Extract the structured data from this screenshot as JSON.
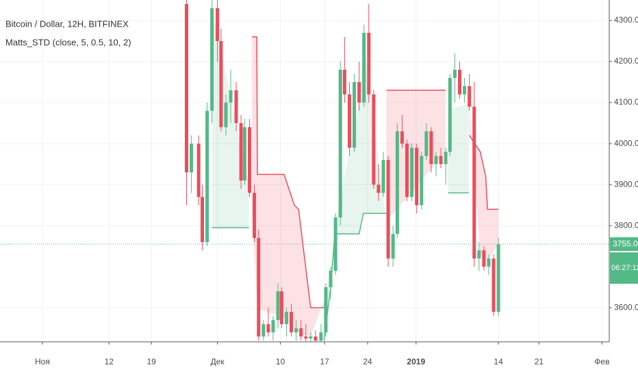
{
  "chart_data": {
    "type": "candlestick",
    "title": "Bitcoin / Dollar, 12H, BITFINEX",
    "subtitle": "Matts_STD (close, 5, 0.5, 10, 2)",
    "colors": {
      "up": "#53b987",
      "down": "#eb4d5c"
    },
    "candles": {
      "x": [
        23.8,
        24.6,
        25.8,
        26.4,
        27.2,
        28.0,
        28.9,
        29.5,
        30.3,
        31.1,
        32.0,
        32.8,
        33.4,
        34.2,
        35.0,
        35.7,
        36.5,
        37.3,
        38.1,
        38.9,
        39.5,
        40.3,
        41.1,
        41.9,
        42.7,
        43.5,
        44.3,
        45.1,
        46.0,
        46.8,
        47.6,
        48.4,
        49.2,
        49.9,
        50.7,
        51.5,
        52.3,
        53.1,
        53.9,
        54.7,
        55.5,
        56.3,
        57.1,
        57.9,
        58.6,
        59.4,
        60.2,
        61.0,
        61.8,
        62.6,
        63.4,
        64.2,
        65.0,
        65.8,
        66.6,
        67.3,
        68.1,
        68.9,
        69.7,
        70.5,
        71.3,
        72.1,
        72.9,
        73.7,
        74.5,
        75.3
      ],
      "open": [
        4340,
        3930,
        4000,
        3870,
        3760,
        4080,
        4330,
        4250,
        4040,
        4100,
        4130,
        4050,
        3910,
        4040,
        3880,
        3770,
        3530,
        3560,
        3540,
        3570,
        3640,
        3560,
        3590,
        3540,
        3550,
        3530,
        3525,
        3530,
        3520,
        3540,
        3650,
        3690,
        3820,
        4180,
        4120,
        3990,
        4150,
        4100,
        4270,
        4120,
        3900,
        3880,
        3960,
        3720,
        3780,
        4030,
        4000,
        3870,
        3990,
        3850,
        3970,
        4030,
        3950,
        3970,
        3950,
        3980,
        4160,
        4180,
        4120,
        4140,
        4090,
        3720,
        3740,
        3700,
        3720,
        3590
      ],
      "high": [
        4350,
        4020,
        4020,
        3900,
        4100,
        4350,
        4350,
        4280,
        4120,
        4180,
        4150,
        4070,
        4060,
        4060,
        3900,
        3790,
        3570,
        3600,
        3580,
        3660,
        3650,
        3600,
        3610,
        3570,
        3570,
        3560,
        3540,
        3545,
        3560,
        3660,
        3700,
        3830,
        4200,
        4260,
        4150,
        4170,
        4200,
        4290,
        4340,
        4130,
        3950,
        3980,
        3970,
        3800,
        4050,
        4070,
        4010,
        4000,
        4000,
        3980,
        4050,
        4040,
        3980,
        3990,
        3990,
        4170,
        4220,
        4200,
        4160,
        4170,
        4150,
        3760,
        3750,
        3730,
        3730,
        3770
      ],
      "low": [
        3850,
        3880,
        3850,
        3740,
        3750,
        4050,
        4200,
        4030,
        4020,
        4050,
        4030,
        3890,
        3900,
        3870,
        3760,
        3520,
        3520,
        3530,
        3520,
        3550,
        3550,
        3530,
        3530,
        3520,
        3520,
        3518,
        3518,
        3518,
        3518,
        3530,
        3620,
        3680,
        3800,
        4100,
        3970,
        3980,
        4080,
        4090,
        4100,
        3890,
        3860,
        3870,
        3700,
        3700,
        3770,
        3990,
        3860,
        3860,
        3830,
        3840,
        3960,
        3930,
        3920,
        3940,
        3900,
        3970,
        4100,
        4110,
        4100,
        4080,
        3700,
        3690,
        3690,
        3680,
        3580,
        3580
      ],
      "close": [
        3930,
        4000,
        3870,
        3760,
        4080,
        4330,
        4250,
        4040,
        4100,
        4130,
        4050,
        3910,
        4040,
        3880,
        3770,
        3530,
        3560,
        3540,
        3570,
        3640,
        3560,
        3590,
        3540,
        3550,
        3530,
        3525,
        3530,
        3520,
        3540,
        3650,
        3690,
        3820,
        4180,
        4120,
        3990,
        4150,
        4100,
        4270,
        4120,
        3900,
        3880,
        3960,
        3720,
        3780,
        4030,
        4000,
        3870,
        3990,
        3850,
        3970,
        4030,
        3950,
        3970,
        3950,
        3980,
        4160,
        4180,
        4120,
        4140,
        4090,
        3720,
        3740,
        3700,
        3720,
        3590,
        3755
      ]
    },
    "upper_band": {
      "color": "#eb4d5c",
      "fill": "rgba(235,77,92,0.16)",
      "x": [
        34.6,
        35.4,
        35.5,
        39.9,
        41.6,
        42.3,
        44.3,
        46.6,
        null,
        56.8,
        66.6,
        null,
        70.5,
        72.3,
        73.2,
        73.5,
        75.3
      ],
      "values": [
        4260,
        4260,
        3925,
        3925,
        3850,
        3840,
        3600,
        3600,
        null,
        4130,
        4130,
        null,
        4020,
        3980,
        3920,
        3840,
        3840
      ]
    },
    "lower_band": {
      "color": "#53b987",
      "fill": "rgba(83,185,135,0.14)",
      "x": [
        28.0,
        34.1,
        null,
        46.5,
        47.6,
        48.3,
        52.3,
        53.0,
        56.8,
        null,
        67.0,
        70.4
      ],
      "values": [
        3795,
        3795,
        null,
        3520,
        3650,
        3780,
        3780,
        3830,
        3830,
        null,
        3880,
        3880
      ]
    },
    "last_price": 3755,
    "last_price_label": "3755.0",
    "countdown": "06:27:11",
    "xlim": [
      -7,
      93.6
    ],
    "ylim": [
      3517,
      4350
    ],
    "xticks": [
      {
        "value": 0,
        "label": "Ноя"
      },
      {
        "value": 11,
        "label": "12"
      },
      {
        "value": 18,
        "label": "19"
      },
      {
        "value": 28.9,
        "label": "Дек"
      },
      {
        "value": 39.3,
        "label": "10"
      },
      {
        "value": 46.6,
        "label": "17"
      },
      {
        "value": 53.7,
        "label": "24"
      },
      {
        "value": 61.7,
        "label": "2019"
      },
      {
        "value": 75.3,
        "label": "14"
      },
      {
        "value": 82,
        "label": "21"
      },
      {
        "value": 92.4,
        "label": "Фев"
      }
    ],
    "yticks": [
      {
        "value": 3600,
        "label": "3600.0"
      },
      {
        "value": 3800,
        "label": "3800.0"
      },
      {
        "value": 3900,
        "label": "3900.0"
      },
      {
        "value": 4000,
        "label": "4000.0"
      },
      {
        "value": 4100,
        "label": "4100.0"
      },
      {
        "value": 4200,
        "label": "4200.0"
      },
      {
        "value": 4300,
        "label": "4300.0"
      }
    ],
    "grid": true
  }
}
